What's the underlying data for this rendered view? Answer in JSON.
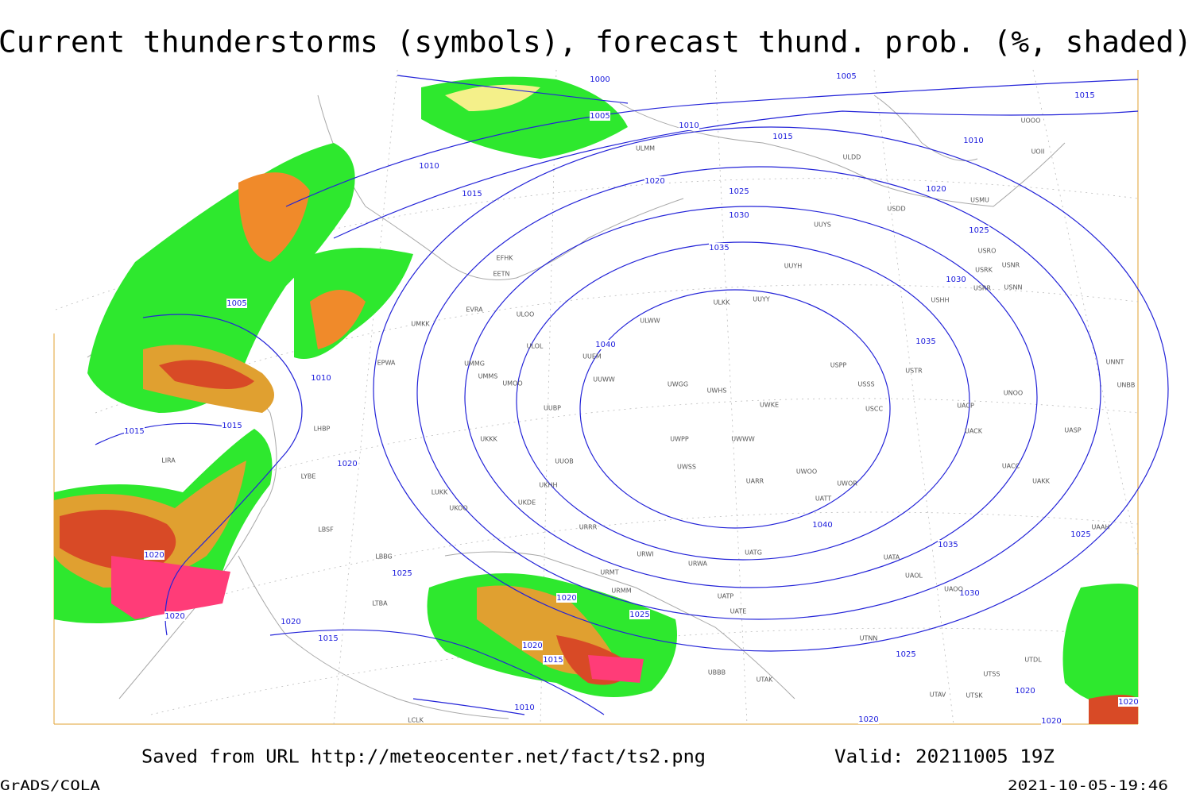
{
  "header": {
    "title": "Current thunderstorms (symbols), forecast thund. prob. (%, shaded)"
  },
  "footer": {
    "source": "Saved from URL http://meteocenter.net/fact/ts2.png",
    "valid": "Valid: 20211005 19Z",
    "software": "GrADS/COLA",
    "timestamp": "2021-10-05-19:46"
  },
  "isobar_labels": [
    "1000",
    "1005",
    "1010",
    "1010",
    "1015",
    "1015",
    "1020",
    "1025",
    "1030",
    "1035",
    "1040",
    "1005",
    "1015",
    "1010",
    "1020",
    "1025",
    "1030",
    "1035",
    "1040",
    "1035",
    "1030",
    "1025",
    "1020",
    "1020",
    "1020",
    "1025",
    "1005",
    "1010",
    "1015",
    "1015",
    "1020",
    "1020",
    "1020",
    "1020",
    "1015",
    "1025",
    "1020",
    "1025",
    "1020",
    "1015",
    "1010",
    "1020"
  ],
  "stations": [
    "ULMM",
    "ULDD",
    "UOOO",
    "UOII",
    "USDD",
    "USMU",
    "UUYS",
    "USRO",
    "USRK",
    "USNR",
    "USRR",
    "USNN",
    "UUYH",
    "USHH",
    "ULKK",
    "UUYY",
    "ULWW",
    "UUEM",
    "UUWW",
    "UWGG",
    "UWHS",
    "UWKE",
    "USPP",
    "USSS",
    "USTR",
    "USCC",
    "UACP",
    "UACK",
    "UNOO",
    "UASP",
    "UUOB",
    "UWPP",
    "UWWW",
    "UWSS",
    "UARR",
    "UWOO",
    "UWOR",
    "UATT",
    "UACC",
    "UAKK",
    "UKKK",
    "UKHH",
    "UKDE",
    "URWA",
    "UATG",
    "UATA",
    "UAOL",
    "UAOO",
    "UTNN",
    "UTSS",
    "UTSK",
    "UTAV",
    "LUKK",
    "LBSF",
    "LYBE",
    "LHBP",
    "LIRA",
    "EPWA",
    "UMMS",
    "UMMG",
    "UMKK",
    "ULOO",
    "ULOL",
    "EVRA",
    "EETN",
    "EFHK",
    "UMOO",
    "UUBP",
    "UKOO",
    "URRR",
    "URWI",
    "URMT",
    "URMM",
    "UBBB",
    "UTAK",
    "LTBA",
    "LBBG",
    "LCLK",
    "UATE",
    "UATP",
    "UTDL",
    "UNNT",
    "UNBB",
    "UAAH"
  ]
}
